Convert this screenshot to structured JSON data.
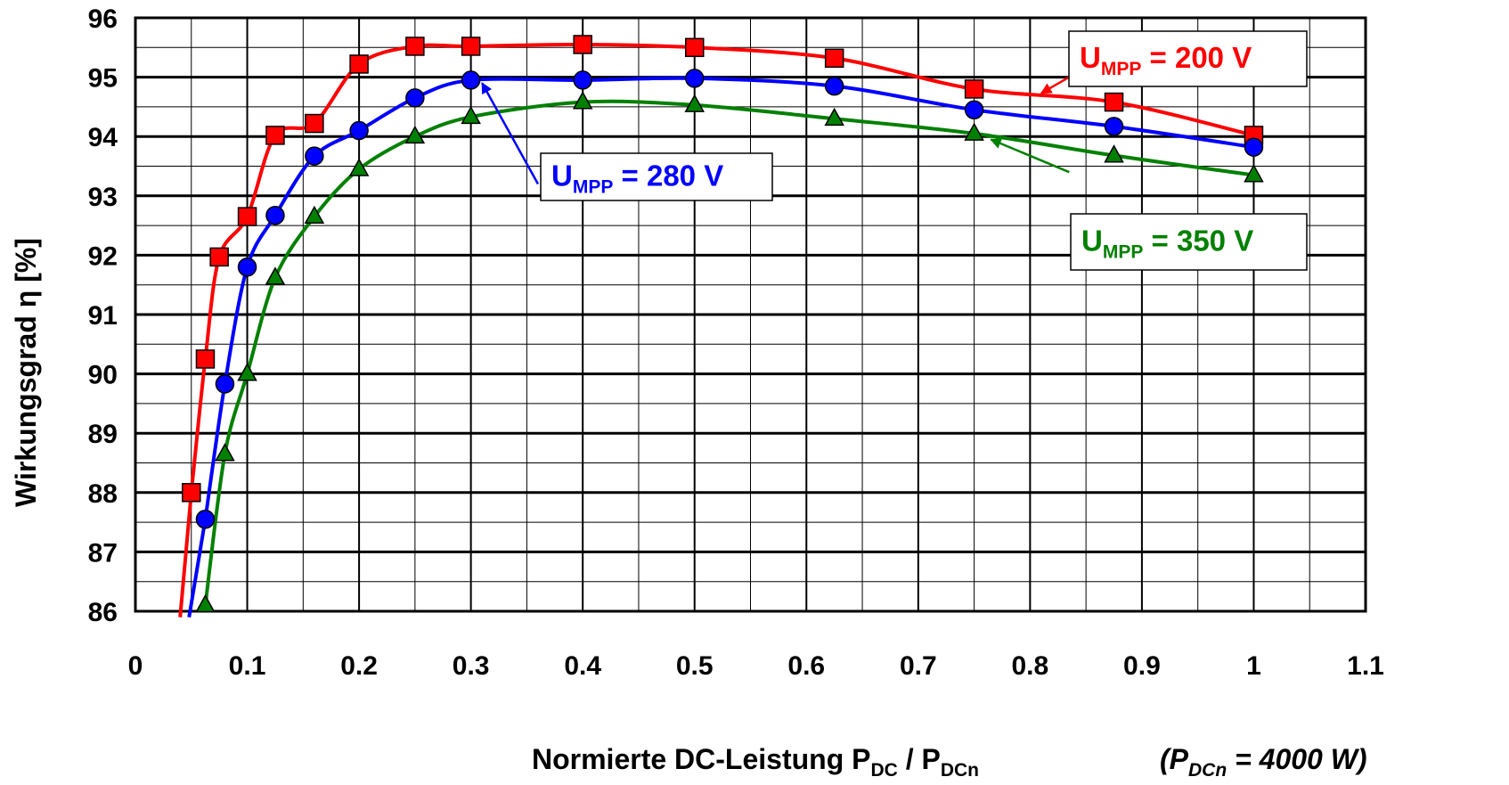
{
  "chart_data": {
    "type": "line",
    "xlabel": {
      "main": "Normierte DC-Leistung P",
      "sub1": "DC",
      "mid": " / P",
      "sub2": "DCn"
    },
    "xnote": {
      "open": "(P",
      "sub": "DCn",
      "rest": " = 4000 W)"
    },
    "ylabel": "Wirkungsgrad η [%]",
    "xlim": [
      0,
      1.1
    ],
    "ylim": [
      86,
      96
    ],
    "xticks": [
      "0",
      "0.1",
      "0.2",
      "0.3",
      "0.4",
      "0.5",
      "0.6",
      "0.7",
      "0.8",
      "0.9",
      "1",
      "1.1"
    ],
    "yticks": [
      "86",
      "87",
      "88",
      "89",
      "90",
      "91",
      "92",
      "93",
      "94",
      "95",
      "96"
    ],
    "grid": true,
    "series": [
      {
        "name": "U_MPP = 200 V",
        "label": {
          "main": "U",
          "sub": "MPP",
          "rest": " = 200 V"
        },
        "color": "#ff0000",
        "marker": "square",
        "x": [
          0.05,
          0.0625,
          0.075,
          0.1,
          0.125,
          0.16,
          0.2,
          0.25,
          0.3,
          0.4,
          0.5,
          0.625,
          0.75,
          0.875,
          1.0
        ],
        "y": [
          88.0,
          90.25,
          91.97,
          92.65,
          94.02,
          94.22,
          95.22,
          95.52,
          95.52,
          95.55,
          95.5,
          95.32,
          94.8,
          94.58,
          94.02
        ],
        "tail": [
          [
            0.04,
            85.9
          ],
          [
            0.05,
            88.0
          ]
        ]
      },
      {
        "name": "U_MPP = 280 V",
        "label": {
          "main": "U",
          "sub": "MPP",
          "rest": " = 280 V"
        },
        "color": "#0000ff",
        "marker": "circle",
        "x": [
          0.0625,
          0.08,
          0.1,
          0.125,
          0.16,
          0.2,
          0.25,
          0.3,
          0.4,
          0.5,
          0.625,
          0.75,
          0.875,
          1.0
        ],
        "y": [
          87.55,
          89.83,
          91.8,
          92.67,
          93.67,
          94.1,
          94.65,
          94.95,
          94.95,
          94.98,
          94.85,
          94.45,
          94.17,
          93.82
        ],
        "tail": [
          [
            0.048,
            85.9
          ],
          [
            0.0625,
            87.55
          ]
        ]
      },
      {
        "name": "U_MPP = 350 V",
        "label": {
          "main": "U",
          "sub": "MPP",
          "rest": " = 350 V"
        },
        "color": "#008000",
        "marker": "triangle",
        "x": [
          0.0625,
          0.08,
          0.1,
          0.125,
          0.16,
          0.2,
          0.25,
          0.3,
          0.4,
          0.5,
          0.625,
          0.75,
          0.875,
          1.0
        ],
        "y": [
          86.1,
          88.65,
          90.0,
          91.62,
          92.65,
          93.45,
          94.0,
          94.33,
          94.58,
          94.53,
          94.3,
          94.05,
          93.68,
          93.35
        ],
        "tail": []
      }
    ],
    "annotations": [
      {
        "series": 0,
        "arrow_from": [
          0.858,
          95.25
        ],
        "arrow_to": [
          0.81,
          94.73
        ]
      },
      {
        "series": 1,
        "arrow_from": [
          0.36,
          93.2
        ],
        "arrow_to": [
          0.31,
          94.9
        ]
      },
      {
        "series": 2,
        "arrow_from": [
          0.835,
          93.4
        ],
        "arrow_to": [
          0.765,
          93.95
        ]
      }
    ]
  }
}
